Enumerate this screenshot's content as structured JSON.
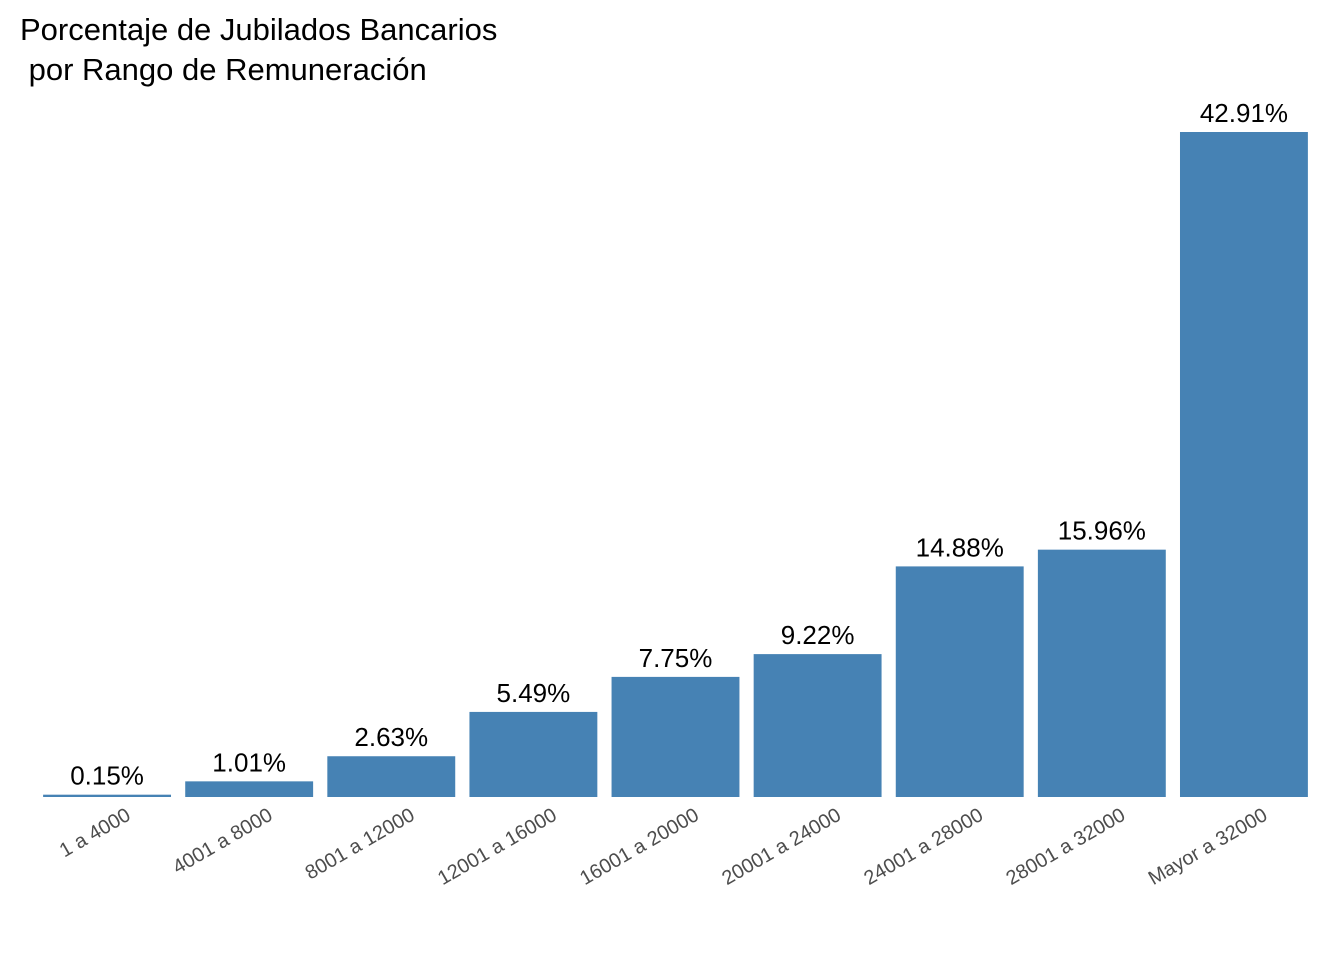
{
  "chart_data": {
    "type": "bar",
    "title": "Porcentaje de Jubilados Bancarios\n por Rango de Remuneración",
    "xlabel": "",
    "ylabel": "",
    "categories": [
      "1 a 4000",
      "4001 a 8000",
      "8001 a 12000",
      "12001 a 16000",
      "16001 a 20000",
      "20001 a 24000",
      "24001 a 28000",
      "28001 a 32000",
      "Mayor a 32000"
    ],
    "values": [
      0.15,
      1.01,
      2.63,
      5.49,
      7.75,
      9.22,
      14.88,
      15.96,
      42.91
    ],
    "value_labels": [
      "0.15%",
      "1.01%",
      "2.63%",
      "5.49%",
      "7.75%",
      "9.22%",
      "14.88%",
      "15.96%",
      "42.91%"
    ],
    "ylim": [
      0,
      42.91
    ],
    "grid": false,
    "legend": "none",
    "bar_color": "#4682B4"
  }
}
